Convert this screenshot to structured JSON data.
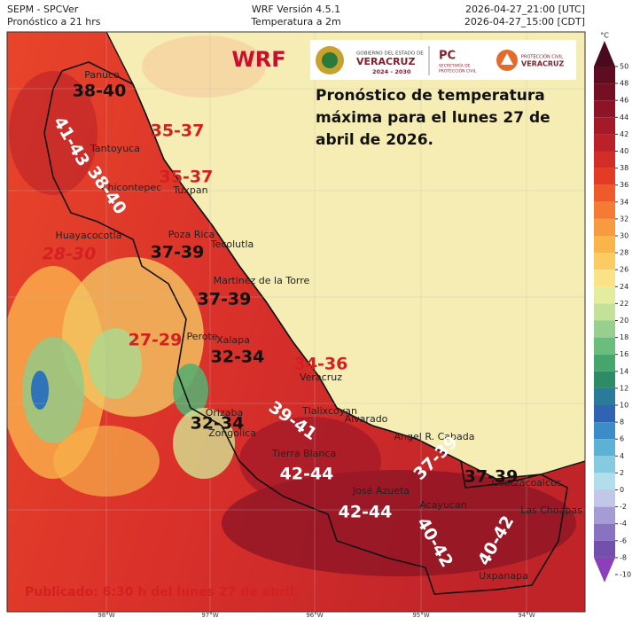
{
  "header": {
    "left": [
      "SEPM - SPCVer",
      "Pronóstico a 21 hrs"
    ],
    "center": [
      "WRF Versión 4.5.1",
      "Temperatura a 2m"
    ],
    "right": [
      "2026-04-27_21:00 [UTC]",
      "2026-04-27_15:00 [CDT]"
    ]
  },
  "model_label": "WRF",
  "logos": {
    "state": [
      "GOBIERNO DEL ESTADO DE",
      "VERACRUZ",
      "2024 - 2030"
    ],
    "pc": [
      "PC",
      "SECRETARÍA DE",
      "PROTECCIÓN CIVIL"
    ],
    "pc_state": [
      "PROTECCIÓN CIVIL",
      "VERACRUZ"
    ]
  },
  "forecast_text": [
    "Pronóstico de temperatura",
    "máxima para el lunes 27 de",
    "abril de 2026."
  ],
  "places": [
    "Panuco",
    "Tantoyuca",
    "Chicontepec",
    "Tuxpan",
    "Huayacocotla",
    "Poza Rica",
    "Tecolutla",
    "Martinez de la Torre",
    "Perote",
    "Xalapa",
    "Veracruz",
    "Tlalixcoyan",
    "Alvarado",
    "Orizaba",
    "Zongolica",
    "Tierra Blanca",
    "Angel R. Cabada",
    "José Azueta",
    "Acayucan",
    "Coatzacoalcos",
    "Las Choapas",
    "Uxpanapa"
  ],
  "ranges": [
    "38-40",
    "41-43",
    "38-40",
    "35-37",
    "35-37",
    "28-30",
    "37-39",
    "37-39",
    "27-29",
    "32-34",
    "34-36",
    "39-41",
    "32-34",
    "42-44",
    "42-44",
    "37-39",
    "37-39",
    "40-42",
    "40-42"
  ],
  "longitudes": [
    "98°W",
    "97°W",
    "96°W",
    "95°W",
    "94°W"
  ],
  "colorbar": {
    "unit": "°C",
    "ticks": [
      50,
      48,
      46,
      44,
      42,
      40,
      38,
      36,
      34,
      32,
      30,
      28,
      26,
      24,
      22,
      20,
      18,
      16,
      14,
      12,
      10,
      8,
      6,
      4,
      2,
      0,
      -2,
      -4,
      -6,
      -8,
      -10
    ],
    "colors": [
      "#4a0a1e",
      "#5e0c22",
      "#740f24",
      "#8c1426",
      "#a41a28",
      "#bb2228",
      "#d22d26",
      "#e43b24",
      "#ef5a2a",
      "#f57a34",
      "#f89a40",
      "#fab44c",
      "#fbcc63",
      "#fbe287",
      "#e6ec9d",
      "#c2e29a",
      "#97d08e",
      "#6bbd7e",
      "#45a56d",
      "#2d8b66",
      "#2b7a9a",
      "#3163b4",
      "#3c8cc9",
      "#5cb1d5",
      "#86cadf",
      "#b2ddea",
      "#c2c7e8",
      "#a59bd5",
      "#8a72c2",
      "#7450ad",
      "#8b3fb8"
    ]
  },
  "footer": "Publicado: 6:30 h del lunes 27 de abril."
}
